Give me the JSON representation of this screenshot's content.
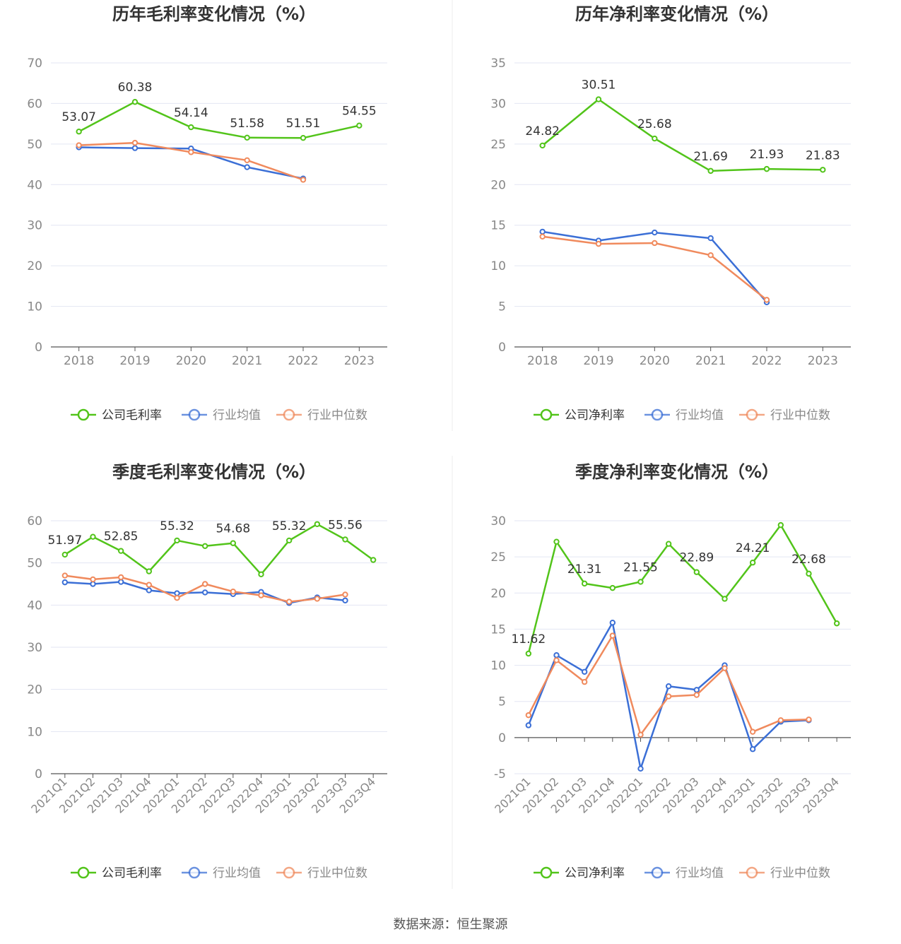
{
  "source_text": "数据来源：恒生聚源",
  "colors": {
    "company": "#52c41a",
    "industry_avg": "#3b6fd6",
    "industry_median": "#f08a5d",
    "grid": "#e3e6f3",
    "axis": "#555555",
    "tick": "#888888",
    "divider": "#eeeeee"
  },
  "chart_data": [
    {
      "type": "line",
      "title": "历年毛利率变化情况（%）",
      "categories": [
        "2018",
        "2019",
        "2020",
        "2021",
        "2022",
        "2023"
      ],
      "ylim": [
        0,
        70
      ],
      "yticks": [
        0,
        10,
        20,
        30,
        40,
        50,
        60,
        70
      ],
      "grid": true,
      "legend": "bottom",
      "series": [
        {
          "name": "公司毛利率",
          "values": [
            53.07,
            60.38,
            54.14,
            51.58,
            51.51,
            54.55
          ],
          "labels": [
            "53.07",
            "60.38",
            "54.14",
            "51.58",
            "51.51",
            "54.55"
          ]
        },
        {
          "name": "行业均值",
          "values": [
            49.2,
            49.0,
            48.9,
            44.3,
            41.5,
            null
          ]
        },
        {
          "name": "行业中位数",
          "values": [
            49.7,
            50.3,
            48.0,
            46.0,
            41.2,
            null
          ]
        }
      ]
    },
    {
      "type": "line",
      "title": "历年净利率变化情况（%）",
      "categories": [
        "2018",
        "2019",
        "2020",
        "2021",
        "2022",
        "2023"
      ],
      "ylim": [
        0,
        35
      ],
      "yticks": [
        0,
        5,
        10,
        15,
        20,
        25,
        30,
        35
      ],
      "grid": true,
      "legend": "bottom",
      "series": [
        {
          "name": "公司净利率",
          "values": [
            24.82,
            30.51,
            25.68,
            21.69,
            21.93,
            21.83
          ],
          "labels": [
            "24.82",
            "30.51",
            "25.68",
            "21.69",
            "21.93",
            "21.83"
          ]
        },
        {
          "name": "行业均值",
          "values": [
            14.2,
            13.1,
            14.1,
            13.4,
            5.5,
            null
          ]
        },
        {
          "name": "行业中位数",
          "values": [
            13.6,
            12.7,
            12.8,
            11.3,
            5.8,
            null
          ]
        }
      ]
    },
    {
      "type": "line",
      "title": "季度毛利率变化情况（%）",
      "categories": [
        "2021Q1",
        "2021Q2",
        "2021Q3",
        "2021Q4",
        "2022Q1",
        "2022Q2",
        "2022Q3",
        "2022Q4",
        "2023Q1",
        "2023Q2",
        "2023Q3",
        "2023Q4"
      ],
      "ylim": [
        0,
        60
      ],
      "yticks": [
        0,
        10,
        20,
        30,
        40,
        50,
        60
      ],
      "grid": true,
      "legend": "bottom",
      "series": [
        {
          "name": "公司毛利率",
          "values": [
            51.97,
            56.2,
            52.85,
            48.0,
            55.32,
            54.0,
            54.68,
            47.3,
            55.32,
            59.2,
            55.56,
            50.7
          ],
          "labels": [
            "51.97",
            null,
            "52.85",
            null,
            "55.32",
            null,
            "54.68",
            null,
            "55.32",
            null,
            "55.56",
            null
          ]
        },
        {
          "name": "行业均值",
          "values": [
            45.4,
            45.0,
            45.5,
            43.5,
            42.8,
            43.0,
            42.6,
            43.1,
            40.5,
            41.8,
            41.1,
            null
          ]
        },
        {
          "name": "行业中位数",
          "values": [
            47.0,
            46.1,
            46.6,
            44.8,
            41.7,
            45.0,
            43.2,
            42.3,
            40.8,
            41.5,
            42.5,
            null
          ]
        }
      ]
    },
    {
      "type": "line",
      "title": "季度净利率变化情况（%）",
      "categories": [
        "2021Q1",
        "2021Q2",
        "2021Q3",
        "2021Q4",
        "2022Q1",
        "2022Q2",
        "2022Q3",
        "2022Q4",
        "2023Q1",
        "2023Q2",
        "2023Q3",
        "2023Q4"
      ],
      "ylim": [
        -5,
        30
      ],
      "yticks": [
        -5,
        0,
        5,
        10,
        15,
        20,
        25,
        30
      ],
      "grid": true,
      "legend": "bottom",
      "series": [
        {
          "name": "公司净利率",
          "values": [
            11.62,
            27.1,
            21.31,
            20.7,
            21.55,
            26.8,
            22.89,
            19.2,
            24.21,
            29.4,
            22.68,
            15.8
          ],
          "labels": [
            "11.62",
            null,
            "21.31",
            null,
            "21.55",
            null,
            "22.89",
            null,
            "24.21",
            null,
            "22.68",
            null
          ]
        },
        {
          "name": "行业均值",
          "values": [
            1.7,
            11.4,
            9.1,
            15.9,
            -4.3,
            7.1,
            6.6,
            10.0,
            -1.6,
            2.2,
            2.4,
            null
          ]
        },
        {
          "name": "行业中位数",
          "values": [
            3.1,
            10.7,
            7.7,
            14.1,
            0.4,
            5.7,
            5.9,
            9.6,
            0.8,
            2.4,
            2.5,
            null
          ]
        }
      ]
    }
  ]
}
